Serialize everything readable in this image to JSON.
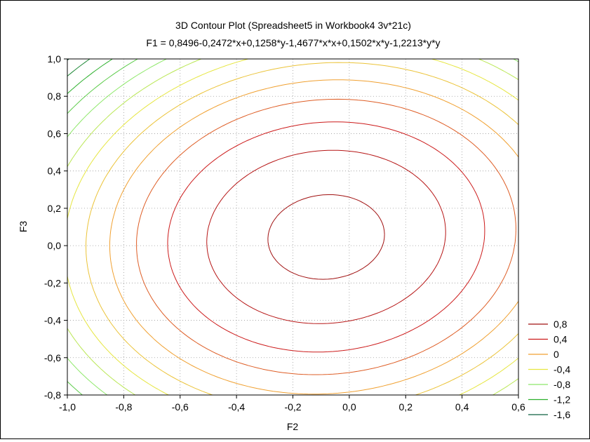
{
  "chart_data": {
    "type": "contour",
    "title": "3D Contour Plot (Spreadsheet5 in Workbook4 3v*21c)",
    "subtitle": "F1 = 0,8496-0,2472*x+0,1258*y-1,4677*x*x+0,1502*x*y-1,2213*y*y",
    "xlabel": "F2",
    "ylabel": "F3",
    "xlim": [
      -1.0,
      0.6
    ],
    "ylim": [
      -0.8,
      1.0
    ],
    "x_ticks": [
      "-1,0",
      "-0,8",
      "-0,6",
      "-0,4",
      "-0,2",
      "0,0",
      "0,2",
      "0,4",
      "0,6"
    ],
    "y_ticks": [
      "1,0",
      "0,8",
      "0,6",
      "0,4",
      "0,2",
      "0,0",
      "-0,2",
      "-0,4",
      "-0,6",
      "-0,8"
    ],
    "x_tick_values": [
      -1.0,
      -0.8,
      -0.6,
      -0.4,
      -0.2,
      0.0,
      0.2,
      0.4,
      0.6
    ],
    "y_tick_values": [
      1.0,
      0.8,
      0.6,
      0.4,
      0.2,
      0.0,
      -0.2,
      -0.4,
      -0.6,
      -0.8
    ],
    "grid": true,
    "function": {
      "c0": 0.8496,
      "cx": -0.2472,
      "cy": 0.1258,
      "cxx": -1.4677,
      "cxy": 0.1502,
      "cyy": -1.2213
    },
    "contour_step": 0.2,
    "contour_min": -2.6,
    "contour_max": 0.8,
    "legend_position": "right",
    "legend": [
      {
        "label": "0,8",
        "color": "#a01010"
      },
      {
        "label": "0,4",
        "color": "#cc1a1a"
      },
      {
        "label": "0",
        "color": "#f0a030"
      },
      {
        "label": "-0,4",
        "color": "#e6e640"
      },
      {
        "label": "-0,8",
        "color": "#8ee86a"
      },
      {
        "label": "-1,2",
        "color": "#2db02d"
      },
      {
        "label": "-1,6",
        "color": "#0f6040"
      }
    ]
  }
}
